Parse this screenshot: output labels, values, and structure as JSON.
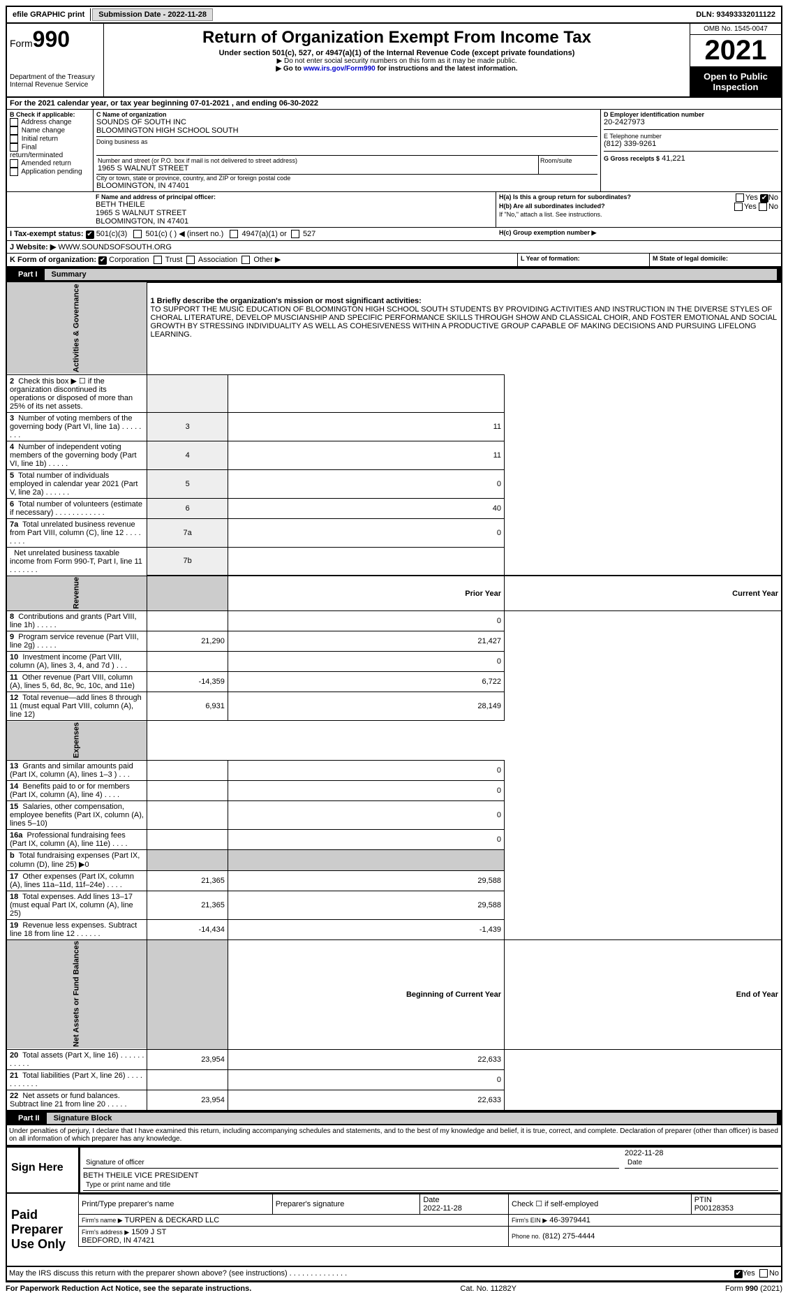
{
  "topbar": {
    "efile": "efile GRAPHIC print",
    "submission": "Submission Date - 2022-11-28",
    "dln": "DLN: 93493332011122"
  },
  "header": {
    "form_label": "Form",
    "form_no": "990",
    "dept": "Department of the Treasury",
    "irs": "Internal Revenue Service",
    "title": "Return of Organization Exempt From Income Tax",
    "sub": "Under section 501(c), 527, or 4947(a)(1) of the Internal Revenue Code (except private foundations)",
    "note1": "▶ Do not enter social security numbers on this form as it may be made public.",
    "note2_pre": "▶ Go to ",
    "note2_link": "www.irs.gov/Form990",
    "note2_post": " for instructions and the latest information.",
    "omb": "OMB No. 1545-0047",
    "year": "2021",
    "open": "Open to Public Inspection"
  },
  "periodA": "For the 2021 calendar year, or tax year beginning 07-01-2021     , and ending 06-30-2022",
  "boxB": {
    "label": "B Check if applicable:",
    "opts": [
      "Address change",
      "Name change",
      "Initial return",
      "Final return/terminated",
      "Amended return",
      "Application pending"
    ]
  },
  "boxC": {
    "name_label": "C Name of organization",
    "name1": "SOUNDS OF SOUTH INC",
    "name2": "BLOOMINGTON HIGH SCHOOL SOUTH",
    "dba_label": "Doing business as",
    "addr_label": "Number and street (or P.O. box if mail is not delivered to street address)",
    "addr": "1965 S WALNUT STREET",
    "room_label": "Room/suite",
    "city_label": "City or town, state or province, country, and ZIP or foreign postal code",
    "city": "BLOOMINGTON, IN  47401"
  },
  "boxD": {
    "label": "D Employer identification number",
    "val": "20-2427973"
  },
  "boxE": {
    "label": "E Telephone number",
    "val": "(812) 339-9261"
  },
  "boxG": {
    "label": "G Gross receipts $",
    "val": "41,221"
  },
  "boxF": {
    "label": "F Name and address of principal officer:",
    "name": "BETH THEILE",
    "addr1": "1965 S WALNUT STREET",
    "addr2": "BLOOMINGTON, IN  47401"
  },
  "boxH": {
    "ha": "H(a)  Is this a group return for subordinates?",
    "hb": "H(b)  Are all subordinates included?",
    "hb_note": "If \"No,\" attach a list. See instructions.",
    "hc": "H(c)  Group exemption number ▶",
    "yes": "Yes",
    "no": "No"
  },
  "boxI": {
    "label": "I  Tax-exempt status:",
    "o1": "501(c)(3)",
    "o2": "501(c) (   ) ◀ (insert no.)",
    "o3": "4947(a)(1) or",
    "o4": "527"
  },
  "boxJ": {
    "label": "J  Website: ▶",
    "val": "WWW.SOUNDSOFSOUTH.ORG"
  },
  "boxK": {
    "label": "K Form of organization:",
    "o1": "Corporation",
    "o2": "Trust",
    "o3": "Association",
    "o4": "Other ▶"
  },
  "boxL": {
    "label": "L Year of formation:"
  },
  "boxM": {
    "label": "M State of legal domicile:"
  },
  "part1": {
    "label": "Part I",
    "title": "Summary"
  },
  "mission_label": "1  Briefly describe the organization's mission or most significant activities:",
  "mission": "TO SUPPORT THE MUSIC EDUCATION OF BLOOMINGTON HIGH SCHOOL SOUTH STUDENTS BY PROVIDING ACTIVITIES AND INSTRUCTION IN THE DIVERSE STYLES OF CHORAL LITERATURE, DEVELOP MUSCIANSHIP AND SPECIFIC PERFORMANCE SKILLS THROUGH SHOW AND CLASSICAL CHOIR, AND FOSTER EMOTIONAL AND SOCIAL GROWTH BY STRESSING INDIVIDUALITY AS WELL AS COHESIVENESS WITHIN A PRODUCTIVE GROUP CAPABLE OF MAKING DECISIONS AND PURSUING LIFELONG LEARNING.",
  "gov_lines": [
    {
      "n": "2",
      "t": "Check this box ▶ ☐  if the organization discontinued its operations or disposed of more than 25% of its net assets.",
      "box": "",
      "v": ""
    },
    {
      "n": "3",
      "t": "Number of voting members of the governing body (Part VI, line 1a)   .   .   .   .   .   .   .   .",
      "box": "3",
      "v": "11"
    },
    {
      "n": "4",
      "t": "Number of independent voting members of the governing body (Part VI, line 1b)   .   .   .   .   .",
      "box": "4",
      "v": "11"
    },
    {
      "n": "5",
      "t": "Total number of individuals employed in calendar year 2021 (Part V, line 2a)   .   .   .   .   .   .",
      "box": "5",
      "v": "0"
    },
    {
      "n": "6",
      "t": "Total number of volunteers (estimate if necessary)   .   .   .   .   .   .   .   .   .   .   .   .",
      "box": "6",
      "v": "40"
    },
    {
      "n": "7a",
      "t": "Total unrelated business revenue from Part VIII, column (C), line 12   .   .   .   .   .   .   .   .",
      "box": "7a",
      "v": "0"
    },
    {
      "n": "",
      "t": "Net unrelated business taxable income from Form 990-T, Part I, line 11   .   .   .   .   .   .   .",
      "box": "7b",
      "v": ""
    }
  ],
  "rev_hdr": {
    "prior": "Prior Year",
    "curr": "Current Year"
  },
  "rev_lines": [
    {
      "n": "8",
      "t": "Contributions and grants (Part VIII, line 1h)   .   .   .   .   .",
      "p": "",
      "c": "0"
    },
    {
      "n": "9",
      "t": "Program service revenue (Part VIII, line 2g)   .   .   .   .   .",
      "p": "21,290",
      "c": "21,427"
    },
    {
      "n": "10",
      "t": "Investment income (Part VIII, column (A), lines 3, 4, and 7d )   .   .   .",
      "p": "",
      "c": "0"
    },
    {
      "n": "11",
      "t": "Other revenue (Part VIII, column (A), lines 5, 6d, 8c, 9c, 10c, and 11e)",
      "p": "-14,359",
      "c": "6,722"
    },
    {
      "n": "12",
      "t": "Total revenue—add lines 8 through 11 (must equal Part VIII, column (A), line 12)",
      "p": "6,931",
      "c": "28,149"
    }
  ],
  "exp_lines": [
    {
      "n": "13",
      "t": "Grants and similar amounts paid (Part IX, column (A), lines 1–3 )   .   .   .",
      "p": "",
      "c": "0"
    },
    {
      "n": "14",
      "t": "Benefits paid to or for members (Part IX, column (A), line 4)   .   .   .   .",
      "p": "",
      "c": "0"
    },
    {
      "n": "15",
      "t": "Salaries, other compensation, employee benefits (Part IX, column (A), lines 5–10)",
      "p": "",
      "c": "0"
    },
    {
      "n": "16a",
      "t": "Professional fundraising fees (Part IX, column (A), line 11e)   .   .   .   .",
      "p": "",
      "c": "0"
    },
    {
      "n": "b",
      "t": "Total fundraising expenses (Part IX, column (D), line 25) ▶0",
      "p": "grey",
      "c": "grey"
    },
    {
      "n": "17",
      "t": "Other expenses (Part IX, column (A), lines 11a–11d, 11f–24e)   .   .   .   .",
      "p": "21,365",
      "c": "29,588"
    },
    {
      "n": "18",
      "t": "Total expenses. Add lines 13–17 (must equal Part IX, column (A), line 25)",
      "p": "21,365",
      "c": "29,588"
    },
    {
      "n": "19",
      "t": "Revenue less expenses. Subtract line 18 from line 12   .   .   .   .   .   .",
      "p": "-14,434",
      "c": "-1,439"
    }
  ],
  "net_hdr": {
    "beg": "Beginning of Current Year",
    "end": "End of Year"
  },
  "net_lines": [
    {
      "n": "20",
      "t": "Total assets (Part X, line 16)   .   .   .   .   .   .   .   .   .   .   .",
      "p": "23,954",
      "c": "22,633"
    },
    {
      "n": "21",
      "t": "Total liabilities (Part X, line 26)   .   .   .   .   .   .   .   .   .   .   .",
      "p": "",
      "c": "0"
    },
    {
      "n": "22",
      "t": "Net assets or fund balances. Subtract line 21 from line 20   .   .   .   .   .",
      "p": "23,954",
      "c": "22,633"
    }
  ],
  "part2": {
    "label": "Part II",
    "title": "Signature Block"
  },
  "penalty": "Under penalties of perjury, I declare that I have examined this return, including accompanying schedules and statements, and to the best of my knowledge and belief, it is true, correct, and complete. Declaration of preparer (other than officer) is based on all information of which preparer has any knowledge.",
  "sign": {
    "here": "Sign Here",
    "sig_label": "Signature of officer",
    "date": "2022-11-28",
    "date_label": "Date",
    "name": "BETH THEILE  VICE PRESIDENT",
    "name_label": "Type or print name and title"
  },
  "paid": {
    "label": "Paid Preparer Use Only",
    "h1": "Print/Type preparer's name",
    "h2": "Preparer's signature",
    "h3": "Date",
    "h4": "Check ☐ if self-employed",
    "h5": "PTIN",
    "date": "2022-11-28",
    "ptin": "P00128353",
    "firm_label": "Firm's name  ▶",
    "firm": "TURPEN & DECKARD LLC",
    "ein_label": "Firm's EIN ▶",
    "ein": "46-3979441",
    "addr_label": "Firm's address ▶",
    "addr": "1509 J ST",
    "addr2": "BEDFORD, IN  47421",
    "phone_label": "Phone no.",
    "phone": "(812) 275-4444"
  },
  "discuss": "May the IRS discuss this return with the preparer shown above? (see instructions)   .   .   .   .   .   .   .   .   .   .   .   .   .   .",
  "foot": {
    "pra": "For Paperwork Reduction Act Notice, see the separate instructions.",
    "cat": "Cat. No. 11282Y",
    "form": "Form 990 (2021)"
  },
  "side": {
    "gov": "Activities & Governance",
    "rev": "Revenue",
    "exp": "Expenses",
    "net": "Net Assets or Fund Balances"
  }
}
